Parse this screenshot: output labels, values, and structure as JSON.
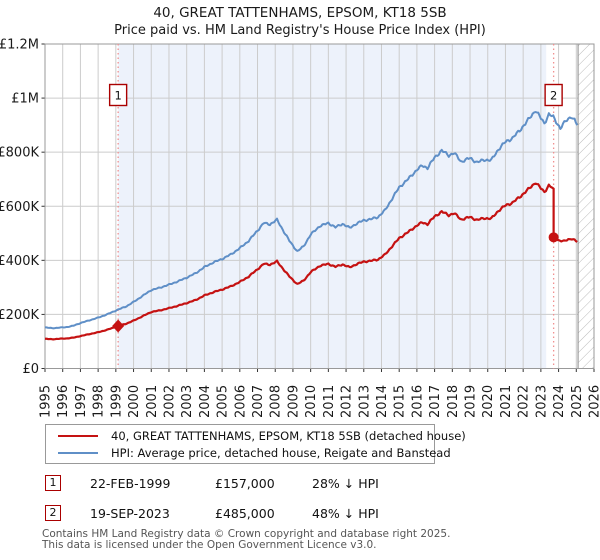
{
  "page": {
    "title": "40, GREAT TATTENHAMS, EPSOM, KT18 5SB",
    "subtitle": "Price paid vs. HM Land Registry's House Price Index (HPI)"
  },
  "chart_data": {
    "type": "line",
    "title": "40, GREAT TATTENHAMS, EPSOM, KT18 5SB",
    "subtitle": "Price paid vs. HM Land Registry's House Price Index (HPI)",
    "x_range": [
      1995,
      2026
    ],
    "y_range_gbp": [
      0,
      1200000
    ],
    "values_unit": "GBP_thousands",
    "grid": true,
    "y_ticks": [
      {
        "value": 0,
        "label": "£0"
      },
      {
        "value": 200,
        "label": "£200K"
      },
      {
        "value": 400,
        "label": "£400K"
      },
      {
        "value": 600,
        "label": "£600K"
      },
      {
        "value": 800,
        "label": "£800K"
      },
      {
        "value": 1000,
        "label": "£1M"
      },
      {
        "value": 1200,
        "label": "£1.2M"
      }
    ],
    "x_ticks": [
      1995,
      1996,
      1997,
      1998,
      1999,
      2000,
      2001,
      2002,
      2003,
      2004,
      2005,
      2006,
      2007,
      2008,
      2009,
      2010,
      2011,
      2012,
      2013,
      2014,
      2015,
      2016,
      2017,
      2018,
      2019,
      2020,
      2021,
      2022,
      2023,
      2024,
      2025,
      2026
    ],
    "shade_span": {
      "from": 1999.13,
      "to": 2023.3,
      "color": "#edf2fb"
    },
    "future_hatch_from": 2025.1,
    "colors": {
      "price_paid": "#c51212",
      "hpi": "#5f8fc7",
      "event_dashed": "#f09090",
      "marker_box_border": "#aa0000",
      "grid": "#cccccc",
      "plot_border": "#999999",
      "hatch_line": "#bbbbbb"
    },
    "series": [
      {
        "name": "price-paid",
        "label": "40, GREAT TATTENHAMS, EPSOM, KT18 5SB (detached house)",
        "color": "#c51212",
        "points": [
          [
            1995.0,
            110
          ],
          [
            1995.4,
            108
          ],
          [
            1995.8,
            110
          ],
          [
            1996.2,
            111
          ],
          [
            1996.6,
            114
          ],
          [
            1997.0,
            120
          ],
          [
            1997.5,
            127
          ],
          [
            1998.0,
            134
          ],
          [
            1998.5,
            143
          ],
          [
            1999.13,
            157
          ],
          [
            1999.6,
            166
          ],
          [
            2000.0,
            177
          ],
          [
            2000.5,
            193
          ],
          [
            2001.0,
            209
          ],
          [
            2001.5,
            215
          ],
          [
            2002.0,
            223
          ],
          [
            2002.5,
            232
          ],
          [
            2003.0,
            242
          ],
          [
            2003.5,
            253
          ],
          [
            2004.0,
            270
          ],
          [
            2004.5,
            282
          ],
          [
            2005.0,
            292
          ],
          [
            2005.5,
            304
          ],
          [
            2006.0,
            320
          ],
          [
            2006.5,
            340
          ],
          [
            2007.0,
            367
          ],
          [
            2007.35,
            387
          ],
          [
            2007.7,
            384
          ],
          [
            2008.1,
            396
          ],
          [
            2008.5,
            364
          ],
          [
            2008.8,
            340
          ],
          [
            2009.25,
            312
          ],
          [
            2009.6,
            325
          ],
          [
            2010.0,
            356
          ],
          [
            2010.5,
            379
          ],
          [
            2011.0,
            387
          ],
          [
            2011.4,
            376
          ],
          [
            2011.8,
            385
          ],
          [
            2012.2,
            374
          ],
          [
            2012.6,
            386
          ],
          [
            2013.0,
            395
          ],
          [
            2013.4,
            398
          ],
          [
            2013.8,
            403
          ],
          [
            2014.2,
            421
          ],
          [
            2014.6,
            452
          ],
          [
            2015.0,
            482
          ],
          [
            2015.5,
            504
          ],
          [
            2016.0,
            529
          ],
          [
            2016.3,
            540
          ],
          [
            2016.6,
            534
          ],
          [
            2017.0,
            562
          ],
          [
            2017.4,
            580
          ],
          [
            2017.8,
            567
          ],
          [
            2018.1,
            574
          ],
          [
            2018.5,
            551
          ],
          [
            2019.0,
            560
          ],
          [
            2019.4,
            549
          ],
          [
            2019.8,
            556
          ],
          [
            2020.2,
            554
          ],
          [
            2020.6,
            583
          ],
          [
            2021.0,
            603
          ],
          [
            2021.4,
            613
          ],
          [
            2021.8,
            634
          ],
          [
            2022.2,
            657
          ],
          [
            2022.7,
            688
          ],
          [
            2023.0,
            666
          ],
          [
            2023.2,
            653
          ],
          [
            2023.45,
            677
          ],
          [
            2023.72,
            665
          ],
          [
            2023.72,
            485
          ],
          [
            2024.0,
            474
          ],
          [
            2024.3,
            470
          ],
          [
            2024.55,
            478
          ],
          [
            2024.75,
            480
          ],
          [
            2025.05,
            468
          ]
        ]
      },
      {
        "name": "hpi",
        "label": "HPI: Average price, detached house, Reigate and Banstead",
        "color": "#5f8fc7",
        "points": [
          [
            1995.0,
            152
          ],
          [
            1995.4,
            149
          ],
          [
            1995.8,
            151
          ],
          [
            1996.2,
            153
          ],
          [
            1996.6,
            158
          ],
          [
            1997.0,
            168
          ],
          [
            1997.5,
            178
          ],
          [
            1998.0,
            188
          ],
          [
            1998.5,
            200
          ],
          [
            1999.13,
            218
          ],
          [
            1999.6,
            230
          ],
          [
            2000.0,
            246
          ],
          [
            2000.5,
            268
          ],
          [
            2001.0,
            290
          ],
          [
            2001.5,
            299
          ],
          [
            2002.0,
            310
          ],
          [
            2002.5,
            322
          ],
          [
            2003.0,
            336
          ],
          [
            2003.5,
            352
          ],
          [
            2004.0,
            375
          ],
          [
            2004.5,
            392
          ],
          [
            2005.0,
            405
          ],
          [
            2005.5,
            422
          ],
          [
            2006.0,
            445
          ],
          [
            2006.5,
            472
          ],
          [
            2007.0,
            510
          ],
          [
            2007.35,
            538
          ],
          [
            2007.7,
            533
          ],
          [
            2008.1,
            550
          ],
          [
            2008.5,
            505
          ],
          [
            2008.8,
            472
          ],
          [
            2009.25,
            433
          ],
          [
            2009.6,
            452
          ],
          [
            2010.0,
            495
          ],
          [
            2010.5,
            526
          ],
          [
            2011.0,
            538
          ],
          [
            2011.4,
            522
          ],
          [
            2011.8,
            535
          ],
          [
            2012.2,
            520
          ],
          [
            2012.6,
            536
          ],
          [
            2013.0,
            548
          ],
          [
            2013.4,
            552
          ],
          [
            2013.8,
            560
          ],
          [
            2014.2,
            585
          ],
          [
            2014.6,
            628
          ],
          [
            2015.0,
            670
          ],
          [
            2015.5,
            700
          ],
          [
            2016.0,
            735
          ],
          [
            2016.3,
            750
          ],
          [
            2016.6,
            742
          ],
          [
            2017.0,
            780
          ],
          [
            2017.4,
            806
          ],
          [
            2017.8,
            788
          ],
          [
            2018.1,
            797
          ],
          [
            2018.5,
            765
          ],
          [
            2019.0,
            778
          ],
          [
            2019.4,
            762
          ],
          [
            2019.8,
            772
          ],
          [
            2020.2,
            770
          ],
          [
            2020.6,
            810
          ],
          [
            2021.0,
            838
          ],
          [
            2021.4,
            852
          ],
          [
            2021.8,
            880
          ],
          [
            2022.2,
            912
          ],
          [
            2022.7,
            955
          ],
          [
            2023.0,
            925
          ],
          [
            2023.2,
            907
          ],
          [
            2023.45,
            940
          ],
          [
            2023.7,
            930
          ],
          [
            2024.1,
            888
          ],
          [
            2024.4,
            915
          ],
          [
            2024.7,
            932
          ],
          [
            2024.9,
            918
          ],
          [
            2025.05,
            900
          ]
        ]
      }
    ],
    "sales": [
      {
        "n": "1",
        "date": "22-FEB-1999",
        "price": "£157,000",
        "vs_hpi": "28% ↓ HPI",
        "year": 1999.13,
        "value": 157,
        "marker": "diamond"
      },
      {
        "n": "2",
        "date": "19-SEP-2023",
        "price": "£485,000",
        "vs_hpi": "48% ↓ HPI",
        "year": 2023.72,
        "value": 485,
        "marker": "circle"
      }
    ]
  },
  "legend": {
    "items": [
      {
        "label": "40, GREAT TATTENHAMS, EPSOM, KT18 5SB (detached house)",
        "color": "#c51212"
      },
      {
        "label": "HPI: Average price, detached house, Reigate and Banstead",
        "color": "#5f8fc7"
      }
    ]
  },
  "footer": {
    "line1": "Contains HM Land Registry data © Crown copyright and database right 2025.",
    "line2": "This data is licensed under the Open Government Licence v3.0."
  }
}
